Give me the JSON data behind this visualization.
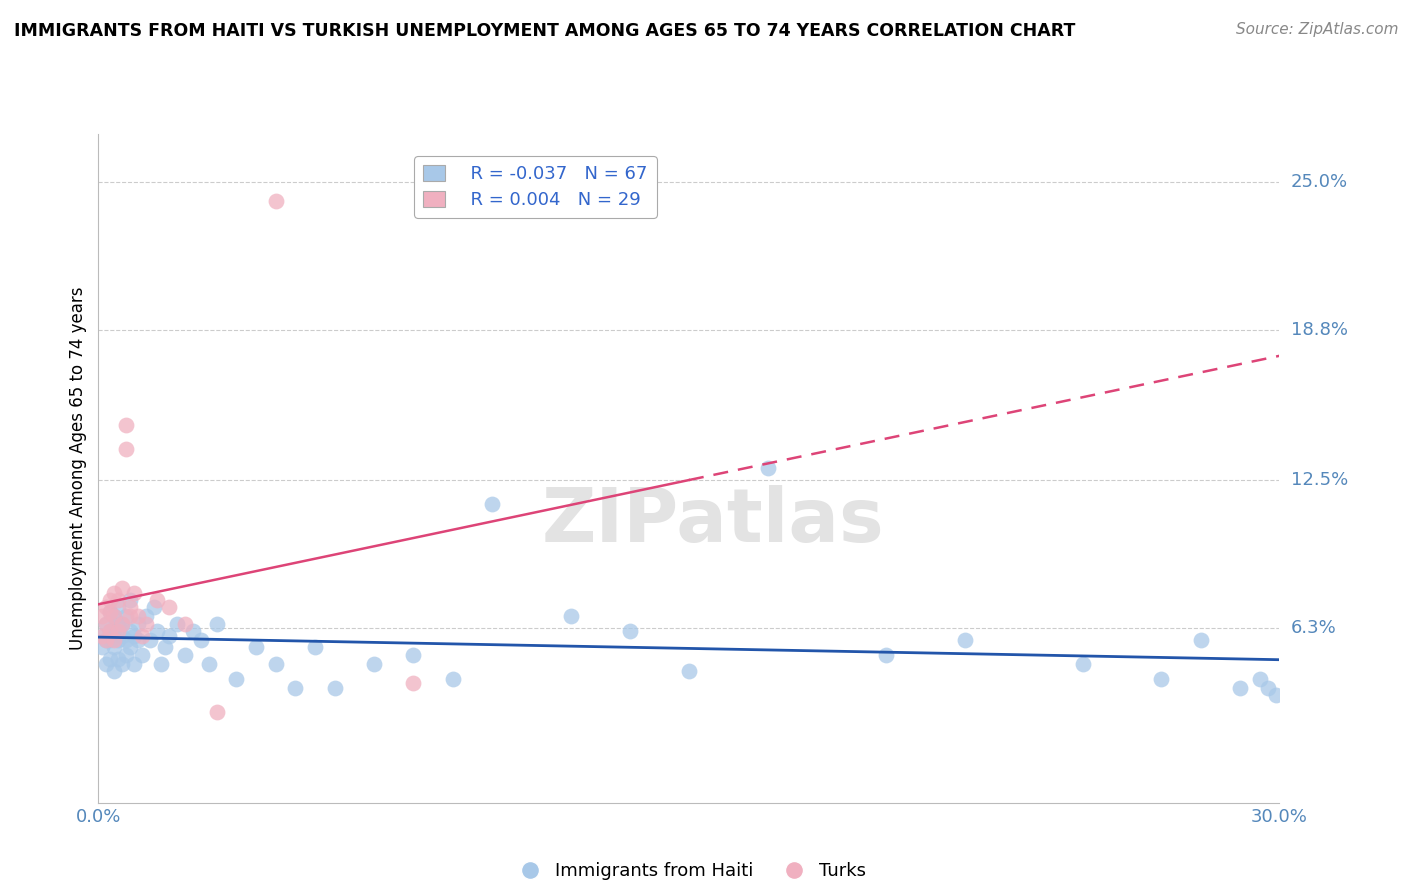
{
  "title": "IMMIGRANTS FROM HAITI VS TURKISH UNEMPLOYMENT AMONG AGES 65 TO 74 YEARS CORRELATION CHART",
  "source": "Source: ZipAtlas.com",
  "ylabel": "Unemployment Among Ages 65 to 74 years",
  "xlim": [
    0.0,
    0.3
  ],
  "ylim": [
    -0.01,
    0.27
  ],
  "grid_color": "#cccccc",
  "background_color": "#ffffff",
  "legend_R1": "-0.037",
  "legend_N1": "67",
  "legend_R2": "0.004",
  "legend_N2": "29",
  "blue_color": "#a8c8e8",
  "pink_color": "#f0b0c0",
  "blue_line_color": "#2255aa",
  "pink_line_color": "#dd4477",
  "haiti_x": [
    0.001,
    0.001,
    0.002,
    0.002,
    0.002,
    0.003,
    0.003,
    0.003,
    0.003,
    0.004,
    0.004,
    0.004,
    0.004,
    0.005,
    0.005,
    0.005,
    0.005,
    0.006,
    0.006,
    0.006,
    0.007,
    0.007,
    0.007,
    0.008,
    0.008,
    0.008,
    0.009,
    0.009,
    0.01,
    0.01,
    0.011,
    0.012,
    0.013,
    0.014,
    0.015,
    0.016,
    0.017,
    0.018,
    0.02,
    0.022,
    0.024,
    0.026,
    0.028,
    0.03,
    0.035,
    0.04,
    0.045,
    0.05,
    0.055,
    0.06,
    0.07,
    0.08,
    0.09,
    0.1,
    0.12,
    0.135,
    0.15,
    0.17,
    0.2,
    0.22,
    0.25,
    0.27,
    0.28,
    0.29,
    0.295,
    0.297,
    0.299
  ],
  "haiti_y": [
    0.055,
    0.06,
    0.048,
    0.058,
    0.065,
    0.05,
    0.058,
    0.062,
    0.07,
    0.045,
    0.055,
    0.062,
    0.068,
    0.05,
    0.058,
    0.065,
    0.072,
    0.048,
    0.06,
    0.065,
    0.052,
    0.058,
    0.068,
    0.062,
    0.055,
    0.075,
    0.048,
    0.06,
    0.058,
    0.065,
    0.052,
    0.068,
    0.058,
    0.072,
    0.062,
    0.048,
    0.055,
    0.06,
    0.065,
    0.052,
    0.062,
    0.058,
    0.048,
    0.065,
    0.042,
    0.055,
    0.048,
    0.038,
    0.055,
    0.038,
    0.048,
    0.052,
    0.042,
    0.115,
    0.068,
    0.062,
    0.045,
    0.13,
    0.052,
    0.058,
    0.048,
    0.042,
    0.058,
    0.038,
    0.042,
    0.038,
    0.035
  ],
  "turk_x": [
    0.001,
    0.001,
    0.002,
    0.002,
    0.002,
    0.003,
    0.003,
    0.003,
    0.004,
    0.004,
    0.004,
    0.005,
    0.005,
    0.006,
    0.006,
    0.007,
    0.007,
    0.008,
    0.008,
    0.009,
    0.01,
    0.011,
    0.012,
    0.015,
    0.018,
    0.022,
    0.03,
    0.045,
    0.08
  ],
  "turk_y": [
    0.06,
    0.068,
    0.058,
    0.065,
    0.072,
    0.062,
    0.07,
    0.075,
    0.058,
    0.068,
    0.078,
    0.062,
    0.075,
    0.065,
    0.08,
    0.138,
    0.148,
    0.072,
    0.068,
    0.078,
    0.068,
    0.06,
    0.065,
    0.075,
    0.072,
    0.065,
    0.028,
    0.242,
    0.04
  ]
}
